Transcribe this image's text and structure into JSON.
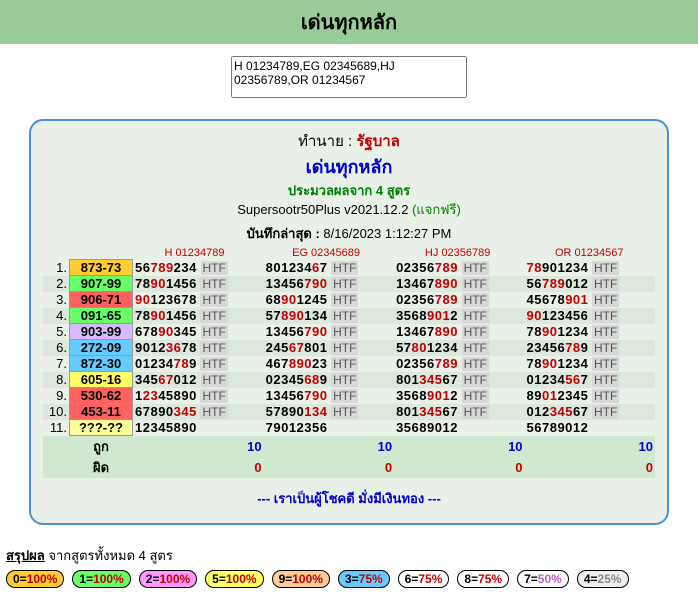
{
  "top_title": "เด่นทุกหลัก",
  "textarea_value": "H 01234789,EG 02345689,HJ 02356789,OR 01234567",
  "panel": {
    "line1_prefix": "ทำนาย : ",
    "line1_red": "รัฐบาล",
    "line2": "เด่นทุกหลัก",
    "line3": "ประมวลผลจาก 4 สูตร",
    "line4_a": "Supersootr50Plus v2021.12.2 ",
    "line4_b": "(แจกฟรี)",
    "line5_label": "บันทึกล่าสุด : ",
    "line5_value": "8/16/2023 1:12:27 PM"
  },
  "col_headers": [
    "H 01234789",
    "EG 02345689",
    "HJ 02356789",
    "OR 01234567"
  ],
  "num_colors": {
    "1": "#ffcc33",
    "2": "#66ff66",
    "3": "#ff6060",
    "4": "#66ff66",
    "5": "#d8b8ff",
    "6": "#66ccff",
    "7": "#66ccff",
    "8": "#ffff66",
    "9": "#ff6060",
    "10": "#ff6060",
    "11": "#ffff99"
  },
  "rows": [
    {
      "idx": "1.",
      "num": "873-73",
      "c1": {
        "d": "56789234",
        "r": [
          2,
          3,
          4
        ]
      },
      "c2": {
        "d": "80123467",
        "r": [
          6
        ]
      },
      "c3": {
        "d": "02356789",
        "r": [
          5,
          6,
          7
        ]
      },
      "c4": {
        "d": "78901234",
        "r": [
          0,
          1
        ]
      }
    },
    {
      "idx": "2.",
      "num": "907-99",
      "c1": {
        "d": "78901456",
        "r": [
          2,
          3
        ]
      },
      "c2": {
        "d": "13456790",
        "r": [
          5,
          6,
          7
        ]
      },
      "c3": {
        "d": "13467890",
        "r": [
          5,
          6,
          7
        ]
      },
      "c4": {
        "d": "56789012",
        "r": [
          2,
          3,
          4
        ]
      }
    },
    {
      "idx": "3.",
      "num": "906-71",
      "c1": {
        "d": "90123678",
        "r": [
          0,
          1
        ]
      },
      "c2": {
        "d": "68901245",
        "r": [
          2,
          3
        ]
      },
      "c3": {
        "d": "02356789",
        "r": [
          5,
          6,
          7
        ]
      },
      "c4": {
        "d": "45678901",
        "r": [
          5,
          6,
          7
        ]
      }
    },
    {
      "idx": "4.",
      "num": "091-65",
      "c1": {
        "d": "78901456",
        "r": [
          2,
          3
        ]
      },
      "c2": {
        "d": "57890134",
        "r": [
          2,
          3,
          4
        ]
      },
      "c3": {
        "d": "35689012",
        "r": [
          4,
          5,
          6
        ]
      },
      "c4": {
        "d": "90123456",
        "r": [
          0,
          1
        ]
      }
    },
    {
      "idx": "5.",
      "num": "903-99",
      "c1": {
        "d": "67890345",
        "r": [
          3,
          4
        ]
      },
      "c2": {
        "d": "13456790",
        "r": [
          5,
          6,
          7
        ]
      },
      "c3": {
        "d": "13467890",
        "r": [
          5,
          6,
          7
        ]
      },
      "c4": {
        "d": "78901234",
        "r": [
          2,
          3
        ]
      }
    },
    {
      "idx": "6.",
      "num": "272-09",
      "c1": {
        "d": "90123678",
        "r": [
          4,
          5
        ]
      },
      "c2": {
        "d": "24567801",
        "r": [
          3,
          4
        ]
      },
      "c3": {
        "d": "57801234",
        "r": [
          2,
          3
        ]
      },
      "c4": {
        "d": "23456789",
        "r": [
          5,
          6
        ]
      }
    },
    {
      "idx": "7.",
      "num": "872-30",
      "c1": {
        "d": "01234789",
        "r": [
          5,
          6
        ]
      },
      "c2": {
        "d": "46789023",
        "r": [
          3,
          4,
          5
        ]
      },
      "c3": {
        "d": "02356789",
        "r": [
          5,
          6,
          7
        ]
      },
      "c4": {
        "d": "78901234",
        "r": [
          2,
          3
        ]
      }
    },
    {
      "idx": "8.",
      "num": "605-16",
      "c1": {
        "d": "34567012",
        "r": [
          3,
          4
        ]
      },
      "c2": {
        "d": "02345689",
        "r": [
          5,
          6
        ]
      },
      "c3": {
        "d": "80134567",
        "r": [
          3,
          4,
          5
        ]
      },
      "c4": {
        "d": "01234567",
        "r": [
          5,
          6
        ]
      }
    },
    {
      "idx": "9.",
      "num": "530-62",
      "c1": {
        "d": "12345890",
        "r": [
          1,
          2
        ]
      },
      "c2": {
        "d": "13456790",
        "r": [
          5,
          6,
          7
        ]
      },
      "c3": {
        "d": "35689012",
        "r": [
          4,
          5,
          6
        ]
      },
      "c4": {
        "d": "89012345",
        "r": [
          2,
          3
        ]
      }
    },
    {
      "idx": "10.",
      "num": "453-11",
      "c1": {
        "d": "67890345",
        "r": [
          5,
          6,
          7
        ]
      },
      "c2": {
        "d": "57890134",
        "r": [
          5,
          6,
          7
        ]
      },
      "c3": {
        "d": "80134567",
        "r": [
          3,
          4,
          5
        ]
      },
      "c4": {
        "d": "01234567",
        "r": [
          3,
          4,
          5
        ]
      }
    },
    {
      "idx": "11.",
      "num": "???-??",
      "c1": {
        "d": "12345890",
        "r": []
      },
      "c2": {
        "d": "79012356",
        "r": []
      },
      "c3": {
        "d": "35689012",
        "r": []
      },
      "c4": {
        "d": "56789012",
        "r": []
      },
      "nohtml": true
    }
  ],
  "summary": {
    "correct_label": "ถูก",
    "wrong_label": "ผิด",
    "correct": [
      "10",
      "10",
      "10",
      "10"
    ],
    "wrong": [
      "0",
      "0",
      "0",
      "0"
    ]
  },
  "footer_line": "--- เราเป็นผู้โชคดี มั่งมีเงินทอง ---",
  "bottom": {
    "title_u": "สรุปผล",
    "title_rest": " จากสูตรทั้งหมด 4 สูตร"
  },
  "chips": [
    {
      "digit": "0",
      "bg": "#ffcc33",
      "pct": "100%",
      "cls": "pct-r"
    },
    {
      "digit": "1",
      "bg": "#66ff66",
      "pct": "100%",
      "cls": "pct-r"
    },
    {
      "digit": "2",
      "bg": "#ff99ff",
      "pct": "100%",
      "cls": "pct-r"
    },
    {
      "digit": "5",
      "bg": "#ffff66",
      "pct": "100%",
      "cls": "pct-r"
    },
    {
      "digit": "9",
      "bg": "#ffcc99",
      "pct": "100%",
      "cls": "pct-r"
    },
    {
      "digit": "3",
      "bg": "#66ccff",
      "pct": "75%",
      "cls": "pct-r"
    },
    {
      "digit": "6",
      "bg": "#ffffff",
      "pct": "75%",
      "cls": "pct-r"
    },
    {
      "digit": "8",
      "bg": "#ffffff",
      "pct": "75%",
      "cls": "pct-r"
    },
    {
      "digit": "7",
      "bg": "#ffffff",
      "pct": "50%",
      "cls": "pct-p"
    },
    {
      "digit": "4",
      "bg": "#eeeeee",
      "pct": "25%",
      "cls": "pct-g"
    }
  ]
}
